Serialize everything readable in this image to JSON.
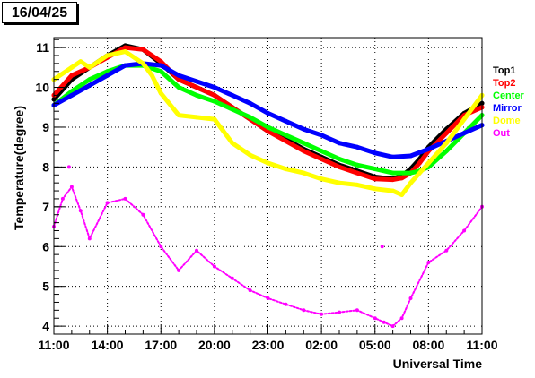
{
  "date_label": "16/04/25",
  "chart_data": {
    "type": "scatter",
    "title": "",
    "xlabel": "Universal Time",
    "ylabel": "Temperature(degree)",
    "x_ticks": [
      "11:00",
      "14:00",
      "17:00",
      "20:00",
      "23:00",
      "02:00",
      "05:00",
      "08:00",
      "11:00"
    ],
    "x_range_hours": [
      0,
      24
    ],
    "y_ticks": [
      4,
      5,
      6,
      7,
      8,
      9,
      10,
      11
    ],
    "ylim": [
      3.8,
      11.25
    ],
    "grid": "dotted",
    "legend_placement": "right",
    "series": [
      {
        "name": "Top1",
        "color": "#000000",
        "x": [
          0,
          1,
          2,
          3,
          4,
          5,
          6,
          7,
          8,
          9,
          10,
          11,
          12,
          13,
          14,
          15,
          16,
          17,
          18,
          19,
          19.5,
          20,
          20.5,
          21,
          22,
          23,
          24
        ],
        "y": [
          9.7,
          10.2,
          10.5,
          10.8,
          11.05,
          10.95,
          10.6,
          10.2,
          10.0,
          9.8,
          9.5,
          9.2,
          8.9,
          8.7,
          8.45,
          8.25,
          8.05,
          7.9,
          7.75,
          7.7,
          7.78,
          7.95,
          8.2,
          8.5,
          8.95,
          9.35,
          9.6
        ]
      },
      {
        "name": "Top2",
        "color": "#ff0000",
        "x": [
          0,
          1,
          2,
          3,
          4,
          5,
          6,
          7,
          8,
          9,
          10,
          11,
          12,
          13,
          14,
          15,
          16,
          17,
          18,
          19,
          19.5,
          20,
          20.5,
          21,
          22,
          23,
          24
        ],
        "y": [
          9.8,
          10.3,
          10.5,
          10.75,
          11.0,
          10.95,
          10.65,
          10.2,
          10.0,
          9.8,
          9.5,
          9.2,
          8.9,
          8.65,
          8.4,
          8.2,
          8.0,
          7.85,
          7.7,
          7.68,
          7.72,
          7.85,
          8.1,
          8.4,
          8.85,
          9.3,
          9.5
        ]
      },
      {
        "name": "Center",
        "color": "#00ff00",
        "x": [
          0,
          1,
          2,
          3,
          4,
          5,
          6,
          7,
          8,
          9,
          10,
          11,
          12,
          13,
          14,
          15,
          16,
          17,
          18,
          19,
          20,
          20.5,
          21,
          22,
          23,
          24
        ],
        "y": [
          9.55,
          9.9,
          10.2,
          10.4,
          10.55,
          10.55,
          10.4,
          10.0,
          9.8,
          9.65,
          9.45,
          9.25,
          9.0,
          8.8,
          8.6,
          8.4,
          8.2,
          8.05,
          7.95,
          7.85,
          7.85,
          7.9,
          8.0,
          8.4,
          8.85,
          9.3
        ]
      },
      {
        "name": "Mirror",
        "color": "#0000ff",
        "x": [
          0,
          1,
          2,
          3,
          4,
          5,
          6,
          7,
          8,
          9,
          10,
          11,
          12,
          13,
          14,
          15,
          16,
          17,
          18,
          19,
          20,
          21,
          22,
          23,
          24
        ],
        "y": [
          9.55,
          9.8,
          10.05,
          10.3,
          10.55,
          10.6,
          10.55,
          10.3,
          10.15,
          10.0,
          9.8,
          9.6,
          9.35,
          9.15,
          8.95,
          8.8,
          8.6,
          8.5,
          8.35,
          8.25,
          8.28,
          8.45,
          8.65,
          8.85,
          9.05
        ]
      },
      {
        "name": "Dome",
        "color": "#ffff00",
        "x": [
          0,
          1,
          1.5,
          2,
          3,
          4,
          5,
          5.5,
          6,
          7,
          8,
          9,
          9.5,
          10,
          11,
          12,
          13,
          14,
          15,
          16,
          17,
          18,
          19,
          19.5,
          20,
          21,
          22,
          23,
          24
        ],
        "y": [
          10.2,
          10.5,
          10.65,
          10.5,
          10.8,
          10.9,
          10.6,
          10.3,
          9.85,
          9.3,
          9.25,
          9.2,
          8.9,
          8.6,
          8.3,
          8.1,
          7.95,
          7.85,
          7.7,
          7.6,
          7.55,
          7.45,
          7.4,
          7.3,
          7.6,
          8.1,
          8.6,
          9.2,
          9.8
        ]
      },
      {
        "name": "Out",
        "color": "#ff00ff",
        "x": [
          0,
          0.5,
          1,
          1.5,
          2,
          3,
          4,
          5,
          6,
          7,
          8,
          9,
          10,
          11,
          12,
          13,
          14,
          15,
          16,
          17,
          18,
          18.5,
          19,
          19.5,
          20,
          21,
          22,
          23,
          24
        ],
        "y": [
          6.5,
          7.2,
          7.5,
          6.9,
          6.2,
          7.1,
          7.2,
          6.8,
          6.0,
          5.4,
          5.9,
          5.5,
          5.2,
          4.9,
          4.7,
          4.55,
          4.4,
          4.3,
          4.35,
          4.4,
          4.2,
          4.1,
          4.0,
          4.2,
          4.7,
          5.6,
          5.9,
          6.4,
          7.0
        ]
      }
    ],
    "extra_points": {
      "Out": [
        {
          "x": 0.85,
          "y": 8.0
        },
        {
          "x": 18.4,
          "y": 6.0
        }
      ]
    }
  }
}
